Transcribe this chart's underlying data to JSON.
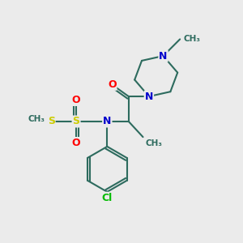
{
  "background_color": "#ebebeb",
  "bond_color": "#2d6b5e",
  "bond_width": 1.5,
  "atom_colors": {
    "N": "#0000cc",
    "O": "#ff0000",
    "S": "#cccc00",
    "Cl": "#00bb00",
    "C": "#2d6b5e"
  },
  "xlim": [
    0,
    10
  ],
  "ylim": [
    0,
    10
  ]
}
